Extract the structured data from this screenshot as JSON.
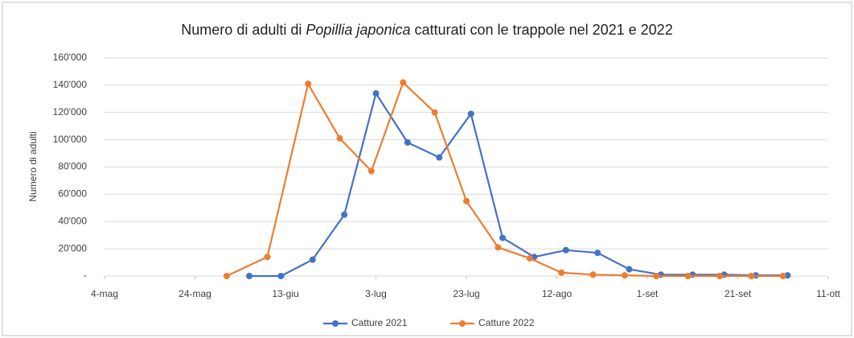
{
  "chart_data": {
    "type": "line",
    "title": [
      "Numero di adulti di",
      "Popillia japonica",
      "catturati con le trappole nel 2021 e 2022"
    ],
    "ylabel": "Numero di adulti",
    "xlim": [
      124,
      284
    ],
    "xticks": [
      {
        "value": 124,
        "label": "4-mag"
      },
      {
        "value": 144,
        "label": "24-mag"
      },
      {
        "value": 164,
        "label": "13-giu"
      },
      {
        "value": 184,
        "label": "3-lug"
      },
      {
        "value": 204,
        "label": "23-lug"
      },
      {
        "value": 224,
        "label": "12-ago"
      },
      {
        "value": 244,
        "label": "1-set"
      },
      {
        "value": 264,
        "label": "21-set"
      },
      {
        "value": 284,
        "label": "11-ott"
      }
    ],
    "ylim": [
      0,
      160000
    ],
    "yticks": [
      {
        "value": 0,
        "label": "-"
      },
      {
        "value": 20000,
        "label": "20'000"
      },
      {
        "value": 40000,
        "label": "40'000"
      },
      {
        "value": 60000,
        "label": "60'000"
      },
      {
        "value": 80000,
        "label": "80'000"
      },
      {
        "value": 100000,
        "label": "100'000"
      },
      {
        "value": 120000,
        "label": "120'000"
      },
      {
        "value": 140000,
        "label": "140'000"
      },
      {
        "value": 160000,
        "label": "160'000"
      }
    ],
    "grid": true,
    "legend": "bottom",
    "series": [
      {
        "name": "Catture 2021",
        "color": "#4472c4",
        "x": [
          156,
          163,
          170,
          177,
          184,
          191,
          198,
          205,
          212,
          219,
          226,
          233,
          240,
          247,
          254,
          261,
          268,
          275
        ],
        "values": [
          0,
          0,
          12000,
          45000,
          134000,
          98000,
          87000,
          119000,
          28000,
          14000,
          19000,
          17000,
          5000,
          1000,
          1000,
          1000,
          500,
          500
        ]
      },
      {
        "name": "Catture 2022",
        "color": "#ed7d31",
        "x": [
          151,
          160,
          169,
          176,
          183,
          190,
          197,
          204,
          211,
          218,
          225,
          232,
          239,
          246,
          253,
          260,
          267,
          274
        ],
        "values": [
          0,
          14000,
          141000,
          101000,
          77000,
          142000,
          120000,
          55000,
          21000,
          13000,
          2500,
          1000,
          500,
          0,
          0,
          0,
          0,
          0
        ]
      }
    ]
  }
}
